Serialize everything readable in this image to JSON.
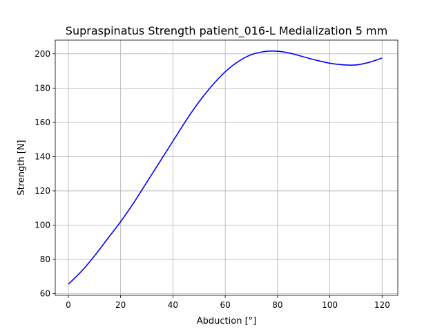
{
  "chart_data": {
    "type": "line",
    "title": "Supraspinatus Strength patient_016-L Medialization 5 mm",
    "xlabel": "Abduction [°]",
    "ylabel": "Strength [N]",
    "xlim": [
      -5,
      126
    ],
    "ylim": [
      59,
      208
    ],
    "xticks": [
      0,
      20,
      40,
      60,
      80,
      100,
      120
    ],
    "yticks": [
      60,
      80,
      100,
      120,
      140,
      160,
      180,
      200
    ],
    "grid": true,
    "series": [
      {
        "color": "#0000ff",
        "x": [
          0,
          5,
          10,
          15,
          20,
          25,
          30,
          35,
          40,
          45,
          50,
          55,
          60,
          65,
          70,
          75,
          80,
          85,
          90,
          95,
          100,
          105,
          110,
          115,
          120
        ],
        "y": [
          65.5,
          73,
          82,
          92,
          102,
          113,
          125,
          137,
          149,
          161,
          172,
          181.5,
          189.5,
          195.5,
          199.5,
          201.3,
          201.5,
          200.3,
          198.2,
          196.2,
          194.5,
          193.6,
          193.5,
          195,
          197.5
        ]
      }
    ]
  }
}
